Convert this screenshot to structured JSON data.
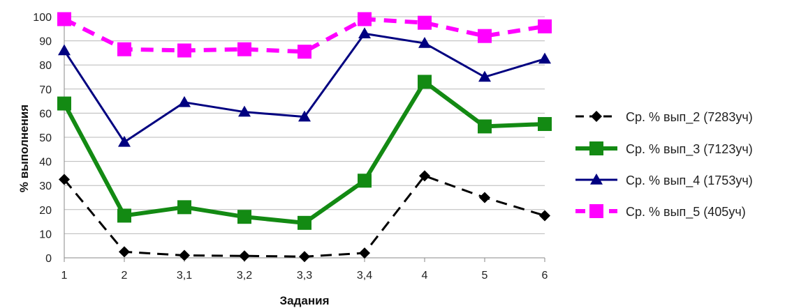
{
  "chart_data": {
    "type": "line",
    "title": "",
    "xlabel": "Задания",
    "ylabel": "% выполнения",
    "categories": [
      "1",
      "2",
      "3,1",
      "3,2",
      "3,3",
      "3,4",
      "4",
      "5",
      "6"
    ],
    "ylim": [
      0,
      100
    ],
    "yticks": [
      "0",
      "10",
      "20",
      "30",
      "40",
      "50",
      "60",
      "70",
      "80",
      "90",
      "100"
    ],
    "grid": true,
    "legend_position": "right",
    "series": [
      {
        "name": "Ср. % вып_2 (7283уч)",
        "values": [
          32.5,
          2.5,
          1,
          0.8,
          0.5,
          2,
          34,
          25,
          17.5
        ],
        "color": "#000000",
        "marker": "diamond",
        "line_style": "dashed"
      },
      {
        "name": "Ср. % вып_3 (7123уч)",
        "values": [
          64,
          17.5,
          21,
          17,
          14.5,
          32,
          73,
          54.5,
          55.5
        ],
        "color": "#138A13",
        "marker": "square",
        "line_style": "solid"
      },
      {
        "name": "Ср. % вып_4 (1753уч)",
        "values": [
          86,
          48,
          64.5,
          60.5,
          58.5,
          93,
          89,
          75,
          82.5
        ],
        "color": "#000080",
        "marker": "triangle",
        "line_style": "solid"
      },
      {
        "name": "Ср. % вып_5 (405уч)",
        "values": [
          99,
          86.5,
          86,
          86.5,
          85.5,
          99,
          97.5,
          92,
          96
        ],
        "color": "#FF00FF",
        "marker": "square",
        "line_style": "dashed"
      }
    ]
  }
}
